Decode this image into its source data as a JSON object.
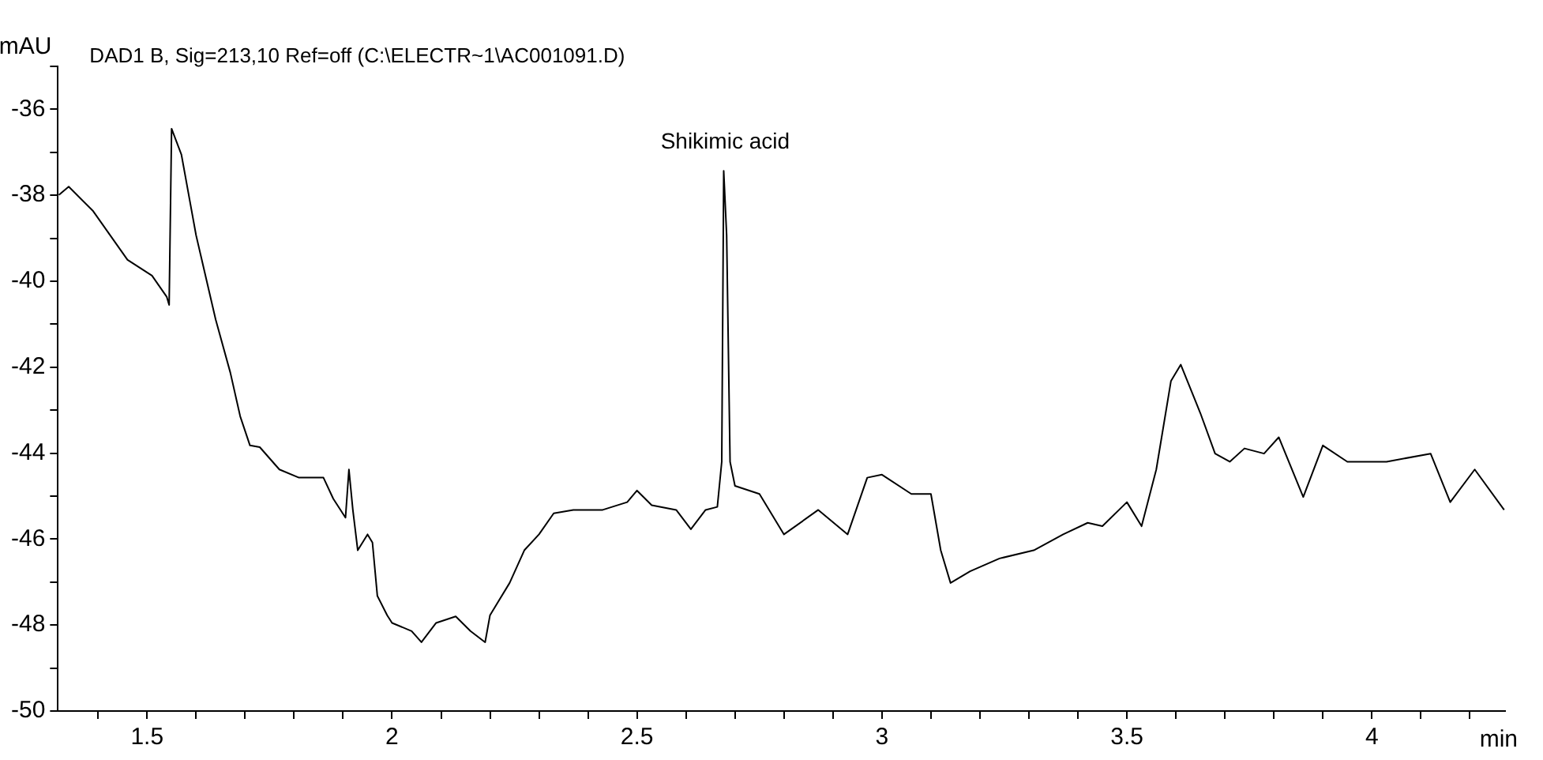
{
  "chart_data": {
    "type": "line",
    "title": "DAD1 B, Sig=213,10 Ref=off (C:\\ELECTR~1\\AC001091.D)",
    "xlabel": "min",
    "ylabel": "mAU",
    "annotations": [
      {
        "text": "Shikimic acid",
        "x": 2.68,
        "y": -37.4
      }
    ],
    "series": [
      {
        "color": "#000000",
        "x": [
          1.32,
          1.34,
          1.39,
          1.46,
          1.51,
          1.54,
          1.545,
          1.55,
          1.57,
          1.6,
          1.64,
          1.67,
          1.69,
          1.71,
          1.73,
          1.77,
          1.81,
          1.86,
          1.88,
          1.905,
          1.912,
          1.92,
          1.93,
          1.95,
          1.96,
          1.97,
          1.99,
          2.0,
          2.04,
          2.06,
          2.09,
          2.13,
          2.16,
          2.19,
          2.2,
          2.24,
          2.27,
          2.3,
          2.33,
          2.37,
          2.43,
          2.48,
          2.5,
          2.53,
          2.58,
          2.61,
          2.64,
          2.664,
          2.673,
          2.677,
          2.683,
          2.69,
          2.7,
          2.75,
          2.8,
          2.87,
          2.93,
          2.97,
          3.0,
          3.06,
          3.1,
          3.12,
          3.14,
          3.18,
          3.24,
          3.31,
          3.37,
          3.42,
          3.45,
          3.5,
          3.53,
          3.56,
          3.59,
          3.61,
          3.65,
          3.68,
          3.71,
          3.74,
          3.78,
          3.81,
          3.86,
          3.9,
          3.95,
          4.03,
          4.12,
          4.16,
          4.21,
          4.27
        ],
        "values": [
          -37.99,
          -37.8,
          -38.37,
          -39.5,
          -39.87,
          -40.36,
          -40.55,
          -36.45,
          -37.05,
          -38.93,
          -40.89,
          -42.13,
          -43.14,
          -43.82,
          -43.86,
          -44.38,
          -44.57,
          -44.57,
          -45.06,
          -45.5,
          -44.38,
          -45.32,
          -46.26,
          -45.89,
          -46.08,
          -47.32,
          -47.77,
          -47.95,
          -48.14,
          -48.4,
          -47.95,
          -47.8,
          -48.14,
          -48.4,
          -47.77,
          -47.02,
          -46.26,
          -45.89,
          -45.4,
          -45.32,
          -45.32,
          -45.14,
          -44.87,
          -45.21,
          -45.32,
          -45.77,
          -45.32,
          -45.25,
          -44.2,
          -37.43,
          -38.93,
          -44.2,
          -44.76,
          -44.95,
          -45.89,
          -45.32,
          -45.89,
          -44.57,
          -44.5,
          -44.95,
          -44.95,
          -46.26,
          -47.02,
          -46.75,
          -46.45,
          -46.26,
          -45.89,
          -45.62,
          -45.7,
          -45.14,
          -45.7,
          -44.38,
          -42.32,
          -41.94,
          -43.07,
          -44.01,
          -44.2,
          -43.89,
          -44.01,
          -43.63,
          -45.02,
          -43.82,
          -44.2,
          -44.2,
          -44.01,
          -45.14,
          -44.38,
          -45.32
        ]
      }
    ],
    "xlim": [
      1.318,
      4.272
    ],
    "xticks": [
      {
        "value": 1.4,
        "label": null
      },
      1.5,
      {
        "value": 1.6,
        "label": null
      },
      {
        "value": 1.7,
        "label": null
      },
      {
        "value": 1.8,
        "label": null
      },
      {
        "value": 1.9,
        "label": null
      },
      2,
      {
        "value": 2.1,
        "label": null
      },
      {
        "value": 2.2,
        "label": null
      },
      {
        "value": 2.3,
        "label": null
      },
      {
        "value": 2.4,
        "label": null
      },
      2.5,
      {
        "value": 2.6,
        "label": null
      },
      {
        "value": 2.7,
        "label": null
      },
      {
        "value": 2.8,
        "label": null
      },
      {
        "value": 2.9,
        "label": null
      },
      3,
      {
        "value": 3.1,
        "label": null
      },
      {
        "value": 3.2,
        "label": null
      },
      {
        "value": 3.3,
        "label": null
      },
      {
        "value": 3.4,
        "label": null
      },
      3.5,
      {
        "value": 3.6,
        "label": null
      },
      {
        "value": 3.7,
        "label": null
      },
      {
        "value": 3.8,
        "label": null
      },
      {
        "value": 3.9,
        "label": null
      },
      4,
      {
        "value": 4.1,
        "label": null
      },
      {
        "value": 4.2,
        "label": null
      }
    ],
    "ylim": [
      -50,
      -35
    ],
    "yticks": [
      -50,
      {
        "value": -49,
        "label": null
      },
      -48,
      {
        "value": -47,
        "label": null
      },
      -46,
      {
        "value": -45,
        "label": null
      },
      -44,
      {
        "value": -43,
        "label": null
      },
      -42,
      {
        "value": -41,
        "label": null
      },
      -40,
      {
        "value": -39,
        "label": null
      },
      -38,
      {
        "value": -37,
        "label": null
      },
      -36,
      {
        "value": -35,
        "label": null
      }
    ],
    "grid": false,
    "legend": false,
    "marker": "none",
    "line_style": "solid"
  }
}
